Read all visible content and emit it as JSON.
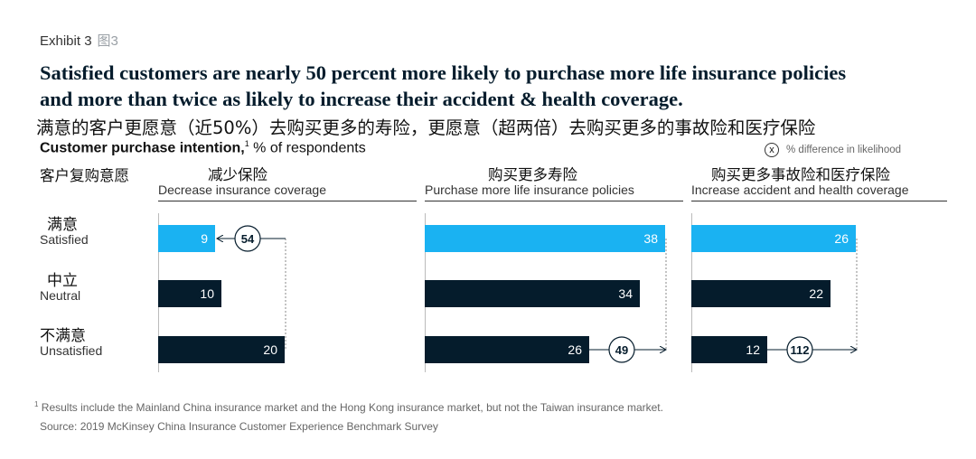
{
  "exhibit": {
    "label": "Exhibit 3",
    "label_cn": "图3"
  },
  "title": {
    "line1": "Satisfied customers are nearly 50 percent more likely to purchase more life insurance policies",
    "line2": "and more than twice as likely to increase their accident & health coverage.",
    "cn": "满意的客户更愿意（近50%）去购买更多的寿险，更愿意（超两倍）去购买更多的事故险和医疗保险"
  },
  "subtitle": {
    "bold": "Customer purchase intention,",
    "sup": "1",
    "rest": " % of respondents",
    "group_cn": "客户复购意愿"
  },
  "legend": {
    "symbol": "x",
    "text": "% difference in likelihood"
  },
  "colors": {
    "highlight": "#1ab2f2",
    "dark": "#051c2c",
    "axis": "#bbbbbb"
  },
  "chart_data": {
    "type": "bar",
    "orientation": "horizontal",
    "legend_position": "top-right",
    "categories": [
      {
        "label_cn": "满意",
        "label": "Satisfied"
      },
      {
        "label_cn": "中立",
        "label": "Neutral"
      },
      {
        "label_cn": "不满意",
        "label": "Unsatisfied"
      }
    ],
    "xlim": [
      0,
      40
    ],
    "series": [
      {
        "name_cn": "减少保险",
        "name": "Decrease insurance coverage",
        "values": [
          9,
          10,
          20
        ],
        "annotation": {
          "value": "54",
          "from": "Unsatisfied",
          "to": "Satisfied"
        }
      },
      {
        "name_cn": "购买更多寿险",
        "name": "Purchase more life insurance policies",
        "values": [
          38,
          34,
          26
        ],
        "annotation": {
          "value": "49",
          "from": "Unsatisfied",
          "to": "Satisfied"
        }
      },
      {
        "name_cn": "购买更多事故险和医疗保险",
        "name": "Increase accident and health coverage",
        "values": [
          26,
          22,
          12
        ],
        "annotation": {
          "value": "112",
          "from": "Unsatisfied",
          "to": "Satisfied"
        }
      }
    ]
  },
  "footnote": {
    "sup": "1",
    "text": " Results include the Mainland China insurance market and the Hong Kong insurance market, but not the Taiwan insurance market."
  },
  "source": "Source: 2019 McKinsey China Insurance Customer Experience Benchmark Survey"
}
